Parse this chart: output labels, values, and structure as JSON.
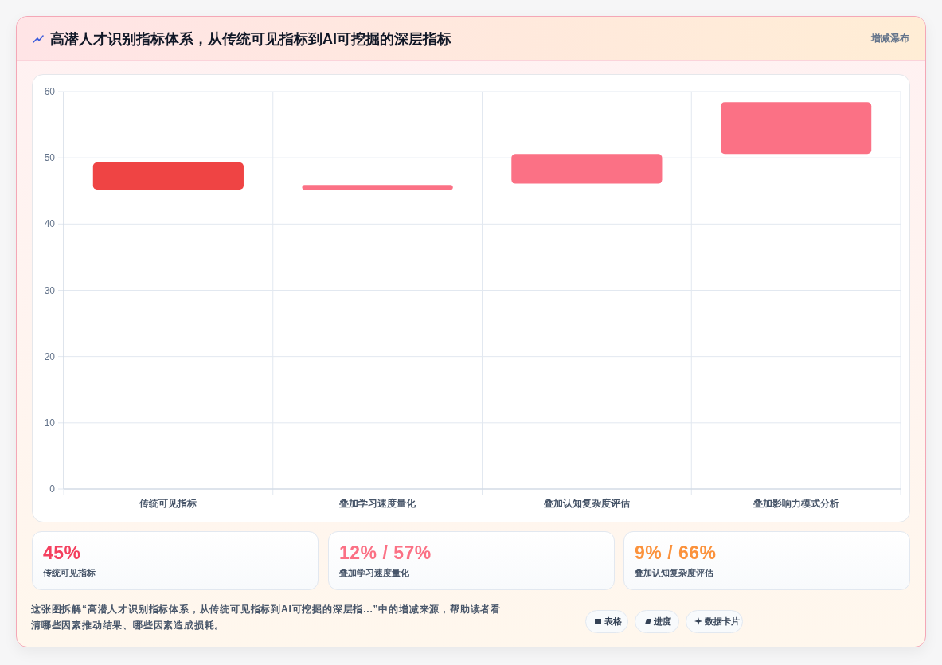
{
  "chart_data": {
    "type": "bar",
    "title": "高潜人才识别指标体系，从传统可见指标到AI可挖掘的深层指标",
    "subtitle": "增减瀑布",
    "categories": [
      "传统可见指标",
      "叠加学习速度量化",
      "叠加认知复杂度评估",
      "叠加影响力模式分析"
    ],
    "base": [
      45.2,
      45.2,
      46.1,
      50.6
    ],
    "values": [
      4.1,
      0.7,
      4.5,
      7.8
    ],
    "colors": [
      "#ef4444",
      "#fb7185",
      "#fb7185",
      "#fb7185"
    ],
    "ylim": [
      0,
      60
    ],
    "yticks": [
      0,
      10,
      20,
      30,
      40,
      50,
      60
    ],
    "grid": true,
    "annotations": [
      "45%",
      "传统可见指标",
      "12% / 57%",
      "叠加学习速度量化",
      "9% / 66%",
      "叠加认知复杂度评估",
      "这张图拆解“高潜人才识别指标体系，从传统可见指标到AI可挖掘的深层指...”中的增减来源，帮助读者看清哪些因素推动结果、哪些因素造成损耗。",
      "表格",
      "进度",
      "数据卡片"
    ]
  }
}
